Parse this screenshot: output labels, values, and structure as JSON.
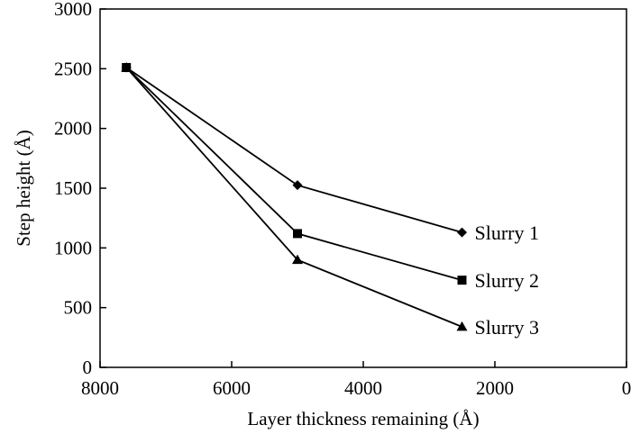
{
  "chart_data": {
    "type": "line",
    "title": "",
    "xlabel": "Layer thickness remaining (Å)",
    "ylabel": "Step height (Å)",
    "xlim": [
      8000,
      0
    ],
    "ylim": [
      0,
      3000
    ],
    "x_ticks": [
      8000,
      6000,
      4000,
      2000,
      0
    ],
    "y_ticks": [
      0,
      500,
      1000,
      1500,
      2000,
      2500,
      3000
    ],
    "grid": false,
    "legend": "direct labels at line ends",
    "series": [
      {
        "name": "Slurry 1",
        "marker": "diamond",
        "x": [
          7600,
          5000,
          2500
        ],
        "y": [
          2510,
          1525,
          1130
        ]
      },
      {
        "name": "Slurry 2",
        "marker": "square",
        "x": [
          7600,
          5000,
          2500
        ],
        "y": [
          2510,
          1120,
          730
        ]
      },
      {
        "name": "Slurry 3",
        "marker": "triangle",
        "x": [
          7600,
          5000,
          2500
        ],
        "y": [
          2510,
          900,
          340
        ]
      }
    ]
  }
}
